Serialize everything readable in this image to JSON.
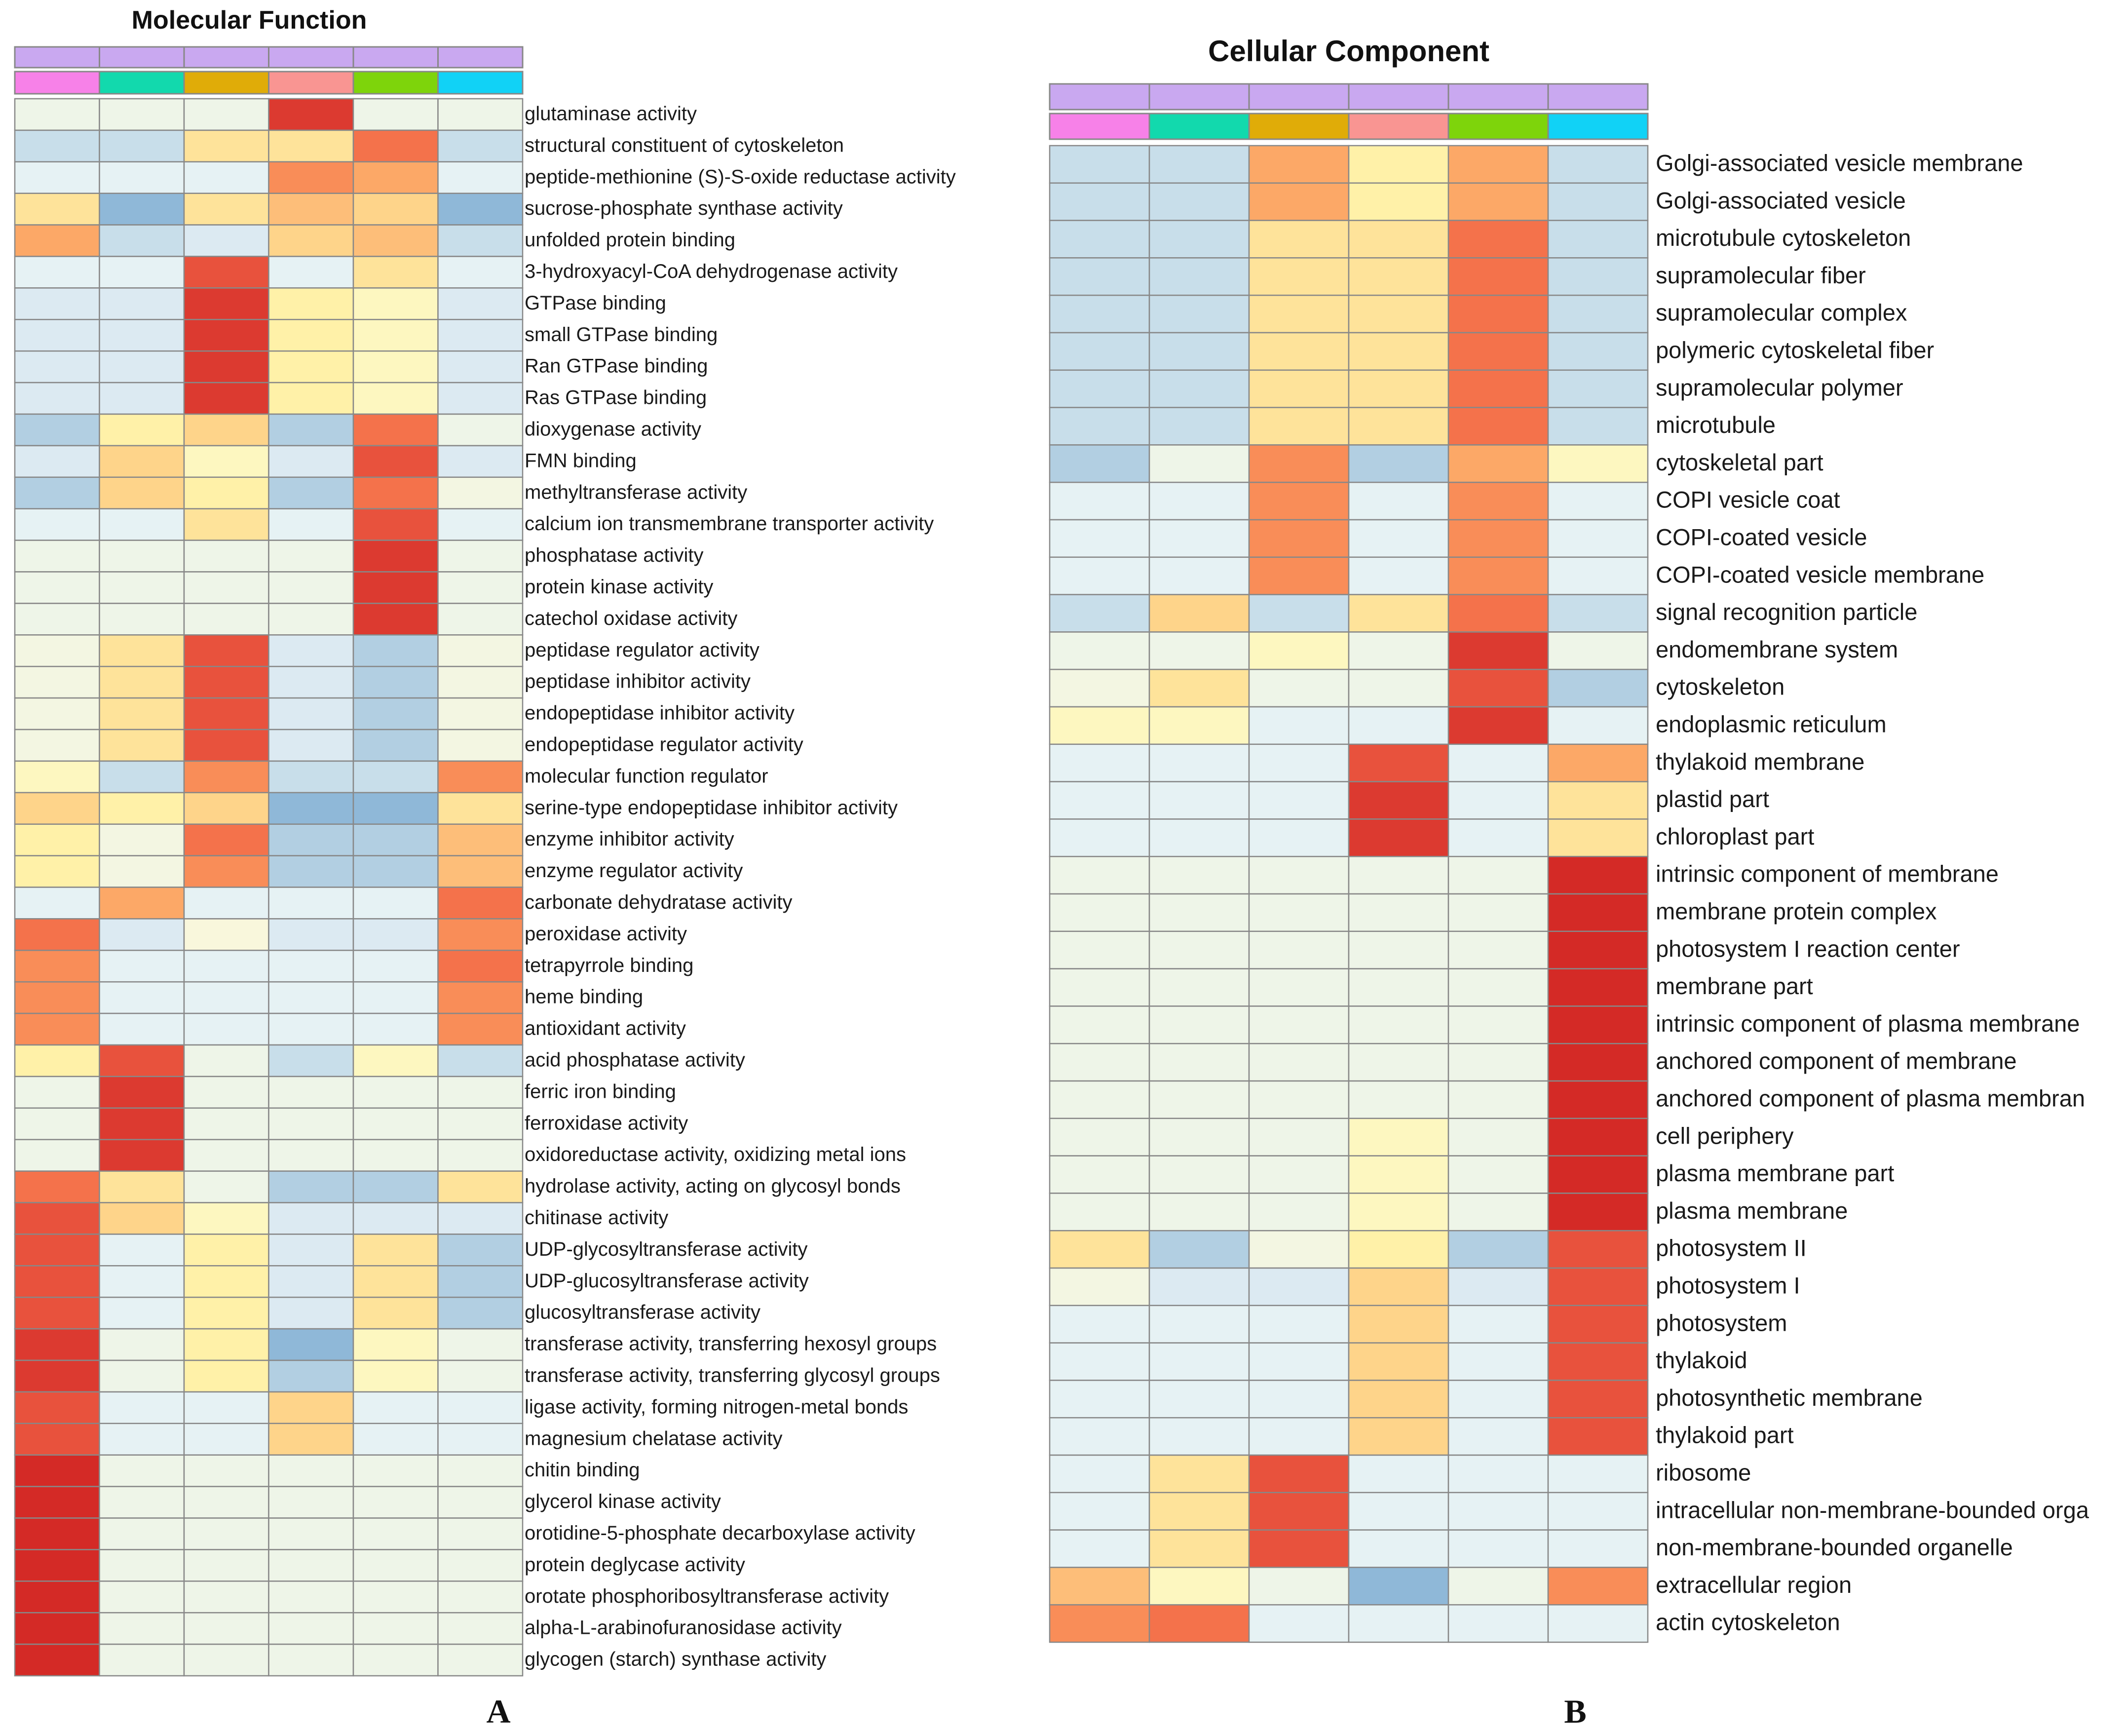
{
  "colors": {
    "scale": [
      "#8fb8d8",
      "#b2cfe2",
      "#c8deea",
      "#dceaf2",
      "#e6f2f4",
      "#eef5e8",
      "#f3f6e2",
      "#f9f7dc",
      "#fdf7c0",
      "#fff1a8",
      "#fee39a",
      "#fed48a",
      "#fdbe79",
      "#fca867",
      "#f98d58",
      "#f4724b",
      "#e8523d",
      "#dc3a30",
      "#d42a26"
    ],
    "group_bar": "#c9a8f0",
    "samples": [
      "#f781e8",
      "#12d9ad",
      "#e0ac08",
      "#f99592",
      "#7ed40b",
      "#11d2f6"
    ],
    "grid": "#888888"
  },
  "chart_data": [
    {
      "type": "heatmap",
      "panel_letter": "A",
      "title": "Molecular Function",
      "columns": 6,
      "value_scale": "0 (low, blue) to 18 (high, red) relative enrichment",
      "rows": [
        {
          "label": "glutaminase activity",
          "values": [
            5,
            5,
            5,
            17,
            5,
            5
          ]
        },
        {
          "label": "structural constituent of cytoskeleton",
          "values": [
            2,
            2,
            10,
            10,
            15,
            2
          ]
        },
        {
          "label": "peptide-methionine (S)-S-oxide reductase activity",
          "values": [
            4,
            4,
            4,
            14,
            13,
            4
          ]
        },
        {
          "label": "sucrose-phosphate synthase activity",
          "values": [
            10,
            0,
            10,
            12,
            11,
            0
          ]
        },
        {
          "label": "unfolded protein binding",
          "values": [
            13,
            2,
            3,
            11,
            12,
            2
          ]
        },
        {
          "label": "3-hydroxyacyl-CoA dehydrogenase activity",
          "values": [
            4,
            4,
            16,
            4,
            10,
            4
          ]
        },
        {
          "label": "GTPase binding",
          "values": [
            3,
            3,
            17,
            9,
            8,
            3
          ]
        },
        {
          "label": "small GTPase binding",
          "values": [
            3,
            3,
            17,
            9,
            8,
            3
          ]
        },
        {
          "label": "Ran GTPase binding",
          "values": [
            3,
            3,
            17,
            9,
            8,
            3
          ]
        },
        {
          "label": "Ras GTPase binding",
          "values": [
            3,
            3,
            17,
            9,
            8,
            3
          ]
        },
        {
          "label": "dioxygenase activity",
          "values": [
            1,
            9,
            11,
            1,
            15,
            5
          ]
        },
        {
          "label": "FMN binding",
          "values": [
            3,
            11,
            8,
            3,
            16,
            3
          ]
        },
        {
          "label": "methyltransferase activity",
          "values": [
            1,
            11,
            9,
            1,
            15,
            6
          ]
        },
        {
          "label": "calcium ion transmembrane transporter activity",
          "values": [
            4,
            4,
            10,
            4,
            16,
            4
          ]
        },
        {
          "label": "phosphatase activity",
          "values": [
            5,
            5,
            5,
            5,
            17,
            5
          ]
        },
        {
          "label": "protein kinase activity",
          "values": [
            5,
            5,
            5,
            5,
            17,
            5
          ]
        },
        {
          "label": "catechol oxidase activity",
          "values": [
            5,
            5,
            5,
            5,
            17,
            5
          ]
        },
        {
          "label": "peptidase regulator activity",
          "values": [
            6,
            10,
            16,
            3,
            1,
            6
          ]
        },
        {
          "label": "peptidase inhibitor activity",
          "values": [
            6,
            10,
            16,
            3,
            1,
            6
          ]
        },
        {
          "label": "endopeptidase inhibitor activity",
          "values": [
            6,
            10,
            16,
            3,
            1,
            6
          ]
        },
        {
          "label": "endopeptidase regulator activity",
          "values": [
            6,
            10,
            16,
            3,
            1,
            6
          ]
        },
        {
          "label": "molecular function regulator",
          "values": [
            8,
            2,
            14,
            2,
            2,
            14
          ]
        },
        {
          "label": "serine-type endopeptidase inhibitor activity",
          "values": [
            11,
            9,
            11,
            0,
            0,
            10
          ]
        },
        {
          "label": "enzyme inhibitor activity",
          "values": [
            9,
            6,
            15,
            1,
            1,
            12
          ]
        },
        {
          "label": "enzyme regulator activity",
          "values": [
            9,
            6,
            14,
            1,
            1,
            12
          ]
        },
        {
          "label": "carbonate dehydratase activity",
          "values": [
            4,
            13,
            4,
            4,
            4,
            15
          ]
        },
        {
          "label": "peroxidase activity",
          "values": [
            15,
            3,
            7,
            3,
            3,
            14
          ]
        },
        {
          "label": "tetrapyrrole binding",
          "values": [
            14,
            4,
            4,
            4,
            4,
            15
          ]
        },
        {
          "label": "heme binding",
          "values": [
            14,
            4,
            4,
            4,
            4,
            14
          ]
        },
        {
          "label": "antioxidant activity",
          "values": [
            14,
            4,
            4,
            4,
            4,
            14
          ]
        },
        {
          "label": "acid phosphatase activity",
          "values": [
            9,
            16,
            5,
            2,
            8,
            2
          ]
        },
        {
          "label": "ferric iron binding",
          "values": [
            5,
            17,
            5,
            5,
            5,
            5
          ]
        },
        {
          "label": "ferroxidase activity",
          "values": [
            5,
            17,
            5,
            5,
            5,
            5
          ]
        },
        {
          "label": "oxidoreductase activity, oxidizing metal ions",
          "values": [
            5,
            17,
            5,
            5,
            5,
            5
          ]
        },
        {
          "label": "hydrolase activity, acting on glycosyl bonds",
          "values": [
            15,
            10,
            5,
            1,
            1,
            10
          ]
        },
        {
          "label": "chitinase activity",
          "values": [
            16,
            11,
            8,
            3,
            3,
            3
          ]
        },
        {
          "label": "UDP-glycosyltransferase activity",
          "values": [
            16,
            4,
            9,
            3,
            10,
            1
          ]
        },
        {
          "label": "UDP-glucosyltransferase activity",
          "values": [
            16,
            4,
            9,
            3,
            10,
            1
          ]
        },
        {
          "label": "glucosyltransferase activity",
          "values": [
            16,
            4,
            9,
            3,
            10,
            1
          ]
        },
        {
          "label": "transferase activity, transferring hexosyl groups",
          "values": [
            17,
            5,
            9,
            0,
            8,
            5
          ]
        },
        {
          "label": "transferase activity, transferring glycosyl groups",
          "values": [
            17,
            5,
            9,
            1,
            8,
            5
          ]
        },
        {
          "label": "ligase activity, forming nitrogen-metal bonds",
          "values": [
            16,
            4,
            4,
            11,
            4,
            4
          ]
        },
        {
          "label": "magnesium chelatase activity",
          "values": [
            16,
            4,
            4,
            11,
            4,
            4
          ]
        },
        {
          "label": "chitin binding",
          "values": [
            18,
            5,
            5,
            5,
            5,
            5
          ]
        },
        {
          "label": "glycerol kinase activity",
          "values": [
            18,
            5,
            5,
            5,
            5,
            5
          ]
        },
        {
          "label": "orotidine-5-phosphate decarboxylase activity",
          "values": [
            18,
            5,
            5,
            5,
            5,
            5
          ]
        },
        {
          "label": "protein deglycase activity",
          "values": [
            18,
            5,
            5,
            5,
            5,
            5
          ]
        },
        {
          "label": "orotate phosphoribosyltransferase activity",
          "values": [
            18,
            5,
            5,
            5,
            5,
            5
          ]
        },
        {
          "label": "alpha-L-arabinofuranosidase activity",
          "values": [
            18,
            5,
            5,
            5,
            5,
            5
          ]
        },
        {
          "label": "glycogen (starch) synthase activity",
          "values": [
            18,
            5,
            5,
            5,
            5,
            5
          ]
        }
      ]
    },
    {
      "type": "heatmap",
      "panel_letter": "B",
      "title": "Cellular Component",
      "columns": 6,
      "value_scale": "0 (low, blue) to 18 (high, red) relative enrichment",
      "rows": [
        {
          "label": "Golgi-associated vesicle membrane",
          "values": [
            2,
            2,
            13,
            9,
            13,
            2
          ]
        },
        {
          "label": "Golgi-associated vesicle",
          "values": [
            2,
            2,
            13,
            9,
            13,
            2
          ]
        },
        {
          "label": "microtubule cytoskeleton",
          "values": [
            2,
            2,
            10,
            10,
            15,
            2
          ]
        },
        {
          "label": "supramolecular fiber",
          "values": [
            2,
            2,
            10,
            10,
            15,
            2
          ]
        },
        {
          "label": "supramolecular complex",
          "values": [
            2,
            2,
            10,
            10,
            15,
            2
          ]
        },
        {
          "label": "polymeric cytoskeletal fiber",
          "values": [
            2,
            2,
            10,
            10,
            15,
            2
          ]
        },
        {
          "label": "supramolecular polymer",
          "values": [
            2,
            2,
            10,
            10,
            15,
            2
          ]
        },
        {
          "label": "microtubule",
          "values": [
            2,
            2,
            10,
            10,
            15,
            2
          ]
        },
        {
          "label": "cytoskeletal part",
          "values": [
            1,
            5,
            14,
            1,
            13,
            8
          ]
        },
        {
          "label": "COPI vesicle coat",
          "values": [
            4,
            4,
            14,
            4,
            14,
            4
          ]
        },
        {
          "label": "COPI-coated vesicle",
          "values": [
            4,
            4,
            14,
            4,
            14,
            4
          ]
        },
        {
          "label": "COPI-coated vesicle membrane",
          "values": [
            4,
            4,
            14,
            4,
            14,
            4
          ]
        },
        {
          "label": "signal recognition particle",
          "values": [
            2,
            11,
            2,
            10,
            15,
            2
          ]
        },
        {
          "label": "endomembrane system",
          "values": [
            5,
            5,
            8,
            5,
            17,
            5
          ]
        },
        {
          "label": "cytoskeleton",
          "values": [
            6,
            10,
            5,
            5,
            16,
            1
          ]
        },
        {
          "label": "endoplasmic reticulum",
          "values": [
            8,
            8,
            4,
            4,
            17,
            4
          ]
        },
        {
          "label": "thylakoid membrane",
          "values": [
            4,
            4,
            4,
            16,
            4,
            13
          ]
        },
        {
          "label": "plastid part",
          "values": [
            4,
            4,
            4,
            17,
            4,
            10
          ]
        },
        {
          "label": "chloroplast part",
          "values": [
            4,
            4,
            4,
            17,
            4,
            10
          ]
        },
        {
          "label": "intrinsic component of membrane",
          "values": [
            5,
            5,
            5,
            5,
            5,
            18
          ]
        },
        {
          "label": "membrane protein complex",
          "values": [
            5,
            5,
            5,
            5,
            5,
            18
          ]
        },
        {
          "label": "photosystem I reaction center",
          "values": [
            5,
            5,
            5,
            5,
            5,
            18
          ]
        },
        {
          "label": "membrane part",
          "values": [
            5,
            5,
            5,
            5,
            5,
            18
          ]
        },
        {
          "label": "intrinsic component of plasma membrane",
          "values": [
            5,
            5,
            5,
            5,
            5,
            18
          ]
        },
        {
          "label": "anchored component of membrane",
          "values": [
            5,
            5,
            5,
            5,
            5,
            18
          ]
        },
        {
          "label": "anchored component of plasma membran",
          "values": [
            5,
            5,
            5,
            5,
            5,
            18
          ]
        },
        {
          "label": "cell periphery",
          "values": [
            5,
            5,
            5,
            8,
            5,
            18
          ]
        },
        {
          "label": "plasma membrane part",
          "values": [
            5,
            5,
            5,
            8,
            5,
            18
          ]
        },
        {
          "label": "plasma membrane",
          "values": [
            5,
            5,
            5,
            8,
            5,
            18
          ]
        },
        {
          "label": "photosystem II",
          "values": [
            10,
            1,
            6,
            9,
            1,
            16
          ]
        },
        {
          "label": "photosystem I",
          "values": [
            6,
            3,
            3,
            11,
            3,
            16
          ]
        },
        {
          "label": "photosystem",
          "values": [
            4,
            4,
            4,
            11,
            4,
            16
          ]
        },
        {
          "label": "thylakoid",
          "values": [
            4,
            4,
            4,
            11,
            4,
            16
          ]
        },
        {
          "label": "photosynthetic membrane",
          "values": [
            4,
            4,
            4,
            11,
            4,
            16
          ]
        },
        {
          "label": "thylakoid part",
          "values": [
            4,
            4,
            4,
            11,
            4,
            16
          ]
        },
        {
          "label": "ribosome",
          "values": [
            4,
            10,
            16,
            4,
            4,
            4
          ]
        },
        {
          "label": "intracellular non-membrane-bounded orga",
          "values": [
            4,
            10,
            16,
            4,
            4,
            4
          ]
        },
        {
          "label": "non-membrane-bounded organelle",
          "values": [
            4,
            10,
            16,
            4,
            4,
            4
          ]
        },
        {
          "label": "extracellular region",
          "values": [
            12,
            8,
            5,
            0,
            5,
            14
          ]
        },
        {
          "label": "actin cytoskeleton",
          "values": [
            14,
            15,
            4,
            4,
            4,
            4
          ]
        }
      ]
    }
  ]
}
